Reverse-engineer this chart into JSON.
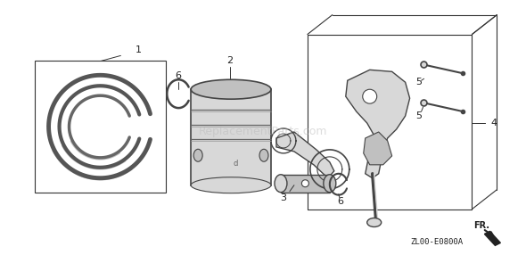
{
  "bg_color": "#ffffff",
  "fig_width": 5.9,
  "fig_height": 2.95,
  "dpi": 100,
  "diagram_code": "ZL00-E0800A",
  "fr_label": "FR.",
  "watermark": "ReplacementParts.com",
  "watermark_color": "#bbbbbb",
  "watermark_fontsize": 9,
  "watermark_alpha": 0.5,
  "label_fontsize": 8,
  "text_color": "#222222",
  "line_color": "#333333",
  "part_color": "#444444",
  "part_fill": "#d8d8d8",
  "part_fill2": "#c0c0c0",
  "box_line_color": "#555555"
}
